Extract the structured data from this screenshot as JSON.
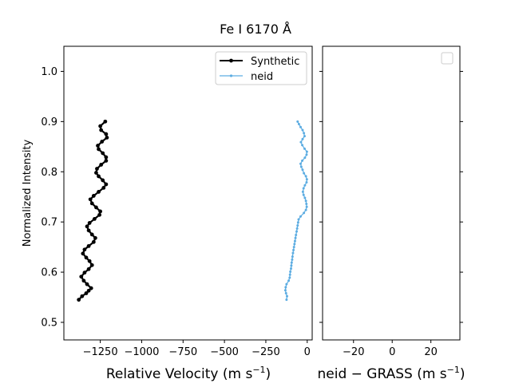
{
  "chart_data": [
    {
      "type": "line",
      "title": "Fe I 6170 Å",
      "xlabel": "Relative Velocity (m s",
      "xlabel_sup": "−1",
      "xlabel_end": ")",
      "ylabel": "Normalized Intensity",
      "xlim": [
        -1470,
        30
      ],
      "ylim": [
        0.465,
        1.05
      ],
      "xticks": [
        -1250,
        -1000,
        -750,
        -500,
        -250,
        0
      ],
      "xtick_labels": [
        "−1250",
        "−1000",
        "−750",
        "−500",
        "−250",
        "0"
      ],
      "yticks": [
        0.5,
        0.6,
        0.7,
        0.8,
        0.9,
        1.0
      ],
      "ytick_labels": [
        "0.5",
        "0.6",
        "0.7",
        "0.8",
        "0.9",
        "1.0"
      ],
      "grid": false,
      "legend": "top-right",
      "series": [
        {
          "name": "Synthetic",
          "color": "#000000",
          "points": [
            [
              -1380,
              0.545
            ],
            [
              -1360,
              0.552
            ],
            [
              -1335,
              0.558
            ],
            [
              -1320,
              0.563
            ],
            [
              -1305,
              0.568
            ],
            [
              -1330,
              0.576
            ],
            [
              -1350,
              0.583
            ],
            [
              -1365,
              0.591
            ],
            [
              -1345,
              0.599
            ],
            [
              -1320,
              0.606
            ],
            [
              -1300,
              0.614
            ],
            [
              -1315,
              0.622
            ],
            [
              -1335,
              0.629
            ],
            [
              -1355,
              0.637
            ],
            [
              -1345,
              0.645
            ],
            [
              -1320,
              0.652
            ],
            [
              -1290,
              0.66
            ],
            [
              -1280,
              0.668
            ],
            [
              -1300,
              0.675
            ],
            [
              -1320,
              0.683
            ],
            [
              -1330,
              0.691
            ],
            [
              -1315,
              0.698
            ],
            [
              -1285,
              0.706
            ],
            [
              -1255,
              0.714
            ],
            [
              -1250,
              0.721
            ],
            [
              -1275,
              0.729
            ],
            [
              -1300,
              0.737
            ],
            [
              -1310,
              0.745
            ],
            [
              -1290,
              0.752
            ],
            [
              -1260,
              0.76
            ],
            [
              -1230,
              0.768
            ],
            [
              -1215,
              0.775
            ],
            [
              -1235,
              0.783
            ],
            [
              -1260,
              0.791
            ],
            [
              -1275,
              0.798
            ],
            [
              -1270,
              0.806
            ],
            [
              -1245,
              0.814
            ],
            [
              -1215,
              0.822
            ],
            [
              -1215,
              0.829
            ],
            [
              -1235,
              0.837
            ],
            [
              -1260,
              0.845
            ],
            [
              -1265,
              0.852
            ],
            [
              -1240,
              0.86
            ],
            [
              -1210,
              0.868
            ],
            [
              -1215,
              0.875
            ],
            [
              -1245,
              0.883
            ],
            [
              -1250,
              0.891
            ],
            [
              -1220,
              0.9
            ]
          ]
        },
        {
          "name": "neid",
          "color": "#5dade2",
          "points": [
            [
              -125,
              0.545
            ],
            [
              -122,
              0.552
            ],
            [
              -128,
              0.558
            ],
            [
              -132,
              0.564
            ],
            [
              -130,
              0.57
            ],
            [
              -125,
              0.576
            ],
            [
              -112,
              0.583
            ],
            [
              -106,
              0.589
            ],
            [
              -104,
              0.595
            ],
            [
              -102,
              0.601
            ],
            [
              -98,
              0.607
            ],
            [
              -96,
              0.613
            ],
            [
              -94,
              0.619
            ],
            [
              -91,
              0.625
            ],
            [
              -89,
              0.631
            ],
            [
              -86,
              0.638
            ],
            [
              -83,
              0.644
            ],
            [
              -80,
              0.65
            ],
            [
              -77,
              0.656
            ],
            [
              -74,
              0.662
            ],
            [
              -71,
              0.668
            ],
            [
              -68,
              0.674
            ],
            [
              -64,
              0.681
            ],
            [
              -61,
              0.687
            ],
            [
              -58,
              0.693
            ],
            [
              -55,
              0.699
            ],
            [
              -52,
              0.705
            ],
            [
              -40,
              0.711
            ],
            [
              -20,
              0.718
            ],
            [
              -8,
              0.724
            ],
            [
              -3,
              0.73
            ],
            [
              -5,
              0.736
            ],
            [
              -8,
              0.742
            ],
            [
              -14,
              0.748
            ],
            [
              -22,
              0.754
            ],
            [
              -26,
              0.76
            ],
            [
              -22,
              0.767
            ],
            [
              -14,
              0.773
            ],
            [
              -4,
              0.779
            ],
            [
              -2,
              0.785
            ],
            [
              -8,
              0.791
            ],
            [
              -20,
              0.797
            ],
            [
              -28,
              0.804
            ],
            [
              -36,
              0.81
            ],
            [
              -40,
              0.816
            ],
            [
              -30,
              0.822
            ],
            [
              -14,
              0.828
            ],
            [
              -4,
              0.834
            ],
            [
              -2,
              0.84
            ],
            [
              -16,
              0.846
            ],
            [
              -30,
              0.853
            ],
            [
              -38,
              0.859
            ],
            [
              -28,
              0.865
            ],
            [
              -16,
              0.871
            ],
            [
              -20,
              0.877
            ],
            [
              -28,
              0.883
            ],
            [
              -40,
              0.889
            ],
            [
              -50,
              0.895
            ],
            [
              -58,
              0.9
            ]
          ]
        }
      ]
    },
    {
      "type": "line",
      "xlabel": "neid  −  GRASS (m s",
      "xlabel_sup": "−1",
      "xlabel_end": ")",
      "xlim": [
        -36,
        35
      ],
      "ylim": [
        0.465,
        1.05
      ],
      "xticks": [
        -20,
        0,
        20
      ],
      "xtick_labels": [
        "−20",
        "0",
        "20"
      ],
      "yticks": [
        0.5,
        0.6,
        0.7,
        0.8,
        0.9,
        1.0
      ],
      "grid": false,
      "legend": "top-right",
      "series": []
    }
  ]
}
